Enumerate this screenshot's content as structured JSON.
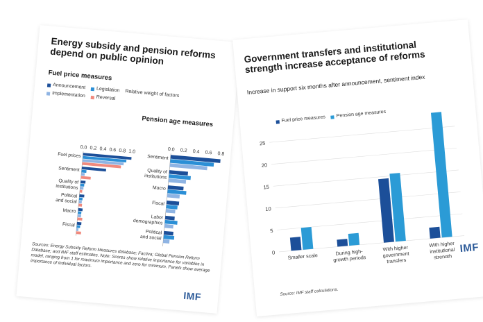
{
  "left_panel": {
    "title": "Energy subsidy and pension reforms depend on public opinion",
    "fuel_subtitle": "Fuel price measures",
    "pension_subtitle": "Pension age measures",
    "legend_caption": "Relative weight of factors",
    "note": "Sources: Energy Subsidy Reform Measures database; Factiva; Global Pension Reform Database; and IMF staff estimates. Note: Scores show relative importance for variables in model, ranging from 1 for maximum importance and zero for minimum. Panels show average importance of individual factors.",
    "logo": "IMF"
  },
  "right_panel": {
    "title": "Government transfers and institutional strength increase acceptance of reforms",
    "subtitle": "Increase in support six months after announcement, sentiment index",
    "source": "Source: IMF staff calculations.",
    "logo": "IMF"
  },
  "colors": {
    "announcement": "#1c4f99",
    "legislation": "#2b8fd6",
    "implementation": "#8fb4e3",
    "reversal": "#f08a7e",
    "fuel_price_measures": "#1c4f99",
    "pension_age_measures": "#2b9bd6"
  },
  "chart_data": [
    {
      "type": "bar",
      "orientation": "horizontal",
      "title": "Fuel price measures",
      "categories": [
        "Fuel prices",
        "Sentiment",
        "Quality of institutions",
        "Political and social",
        "Macro",
        "Fiscal"
      ],
      "category_lines": [
        [
          "Fuel prices"
        ],
        [
          "Sentiment"
        ],
        [
          "Quality of",
          "institutions"
        ],
        [
          "Political",
          "and social"
        ],
        [
          "Macro"
        ],
        [
          "Fiscal"
        ]
      ],
      "series": [
        {
          "name": "Announcement",
          "values": [
            1.0,
            0.5,
            0.1,
            0.1,
            0.09,
            0.09
          ]
        },
        {
          "name": "Legislation",
          "values": [
            0.9,
            0.1,
            0.08,
            0.07,
            0.07,
            0.07
          ]
        },
        {
          "name": "Implementation",
          "values": [
            0.85,
            0.07,
            0.07,
            0.06,
            0.07,
            0.04
          ]
        },
        {
          "name": "Reversal",
          "values": [
            0.8,
            0.2,
            0.05,
            0.07,
            0.1,
            0.1
          ]
        }
      ],
      "xlim": [
        0,
        1.0
      ],
      "xticks": [
        "0.0",
        "0.2",
        "0.4",
        "0.6",
        "0.8",
        "1.0"
      ],
      "xtick_values": [
        0,
        0.2,
        0.4,
        0.6,
        0.8,
        1.0
      ],
      "legend_position": "top"
    },
    {
      "type": "bar",
      "orientation": "horizontal",
      "title": "Pension age measures",
      "categories": [
        "Sentiment",
        "Quality of institutions",
        "Macro",
        "Fiscal",
        "Labor demographics",
        "Political and social"
      ],
      "category_lines": [
        [
          "Sentiment"
        ],
        [
          "Quality of",
          "institutions"
        ],
        [
          "Macro"
        ],
        [
          "Fiscal"
        ],
        [
          "Labor",
          "demographics"
        ],
        [
          "Political",
          "and social"
        ]
      ],
      "series": [
        {
          "name": "Announcement",
          "values": [
            0.8,
            0.3,
            0.25,
            0.2,
            0.15,
            0.15
          ]
        },
        {
          "name": "Legislation",
          "values": [
            0.7,
            0.35,
            0.3,
            0.18,
            0.2,
            0.17
          ]
        },
        {
          "name": "Implementation",
          "values": [
            0.6,
            0.28,
            0.2,
            0.15,
            0.14,
            0.1
          ]
        }
      ],
      "xlim": [
        0,
        0.8
      ],
      "xticks": [
        "0.0",
        "0.2",
        "0.4",
        "0.6",
        "0.8"
      ],
      "xtick_values": [
        0,
        0.2,
        0.4,
        0.6,
        0.8
      ]
    },
    {
      "type": "bar",
      "orientation": "vertical",
      "title": "Government transfers and institutional strength increase acceptance of reforms",
      "ylabel": "Increase in support six months after announcement, sentiment index",
      "categories": [
        "Smaller scale",
        "During high-growth periods",
        "With higher government transfers",
        "With higher institutional strength"
      ],
      "category_lines": [
        [
          "Smaller scale"
        ],
        [
          "During high-",
          "growth periods"
        ],
        [
          "With higher",
          "government",
          "transfers"
        ],
        [
          "With higher",
          "institutional",
          "strength"
        ]
      ],
      "series": [
        {
          "name": "Fuel price measures",
          "values": [
            3.0,
            1.6,
            14.5,
            2.5
          ]
        },
        {
          "name": "Pension age measures",
          "values": [
            5.0,
            2.7,
            15.5,
            28.5
          ]
        }
      ],
      "ylim": [
        0,
        30
      ],
      "yticks": [
        "0",
        "5",
        "10",
        "15",
        "20",
        "25"
      ],
      "ytick_values": [
        0,
        5,
        10,
        15,
        20,
        25
      ],
      "grid": true,
      "legend_position": "top-left"
    }
  ]
}
